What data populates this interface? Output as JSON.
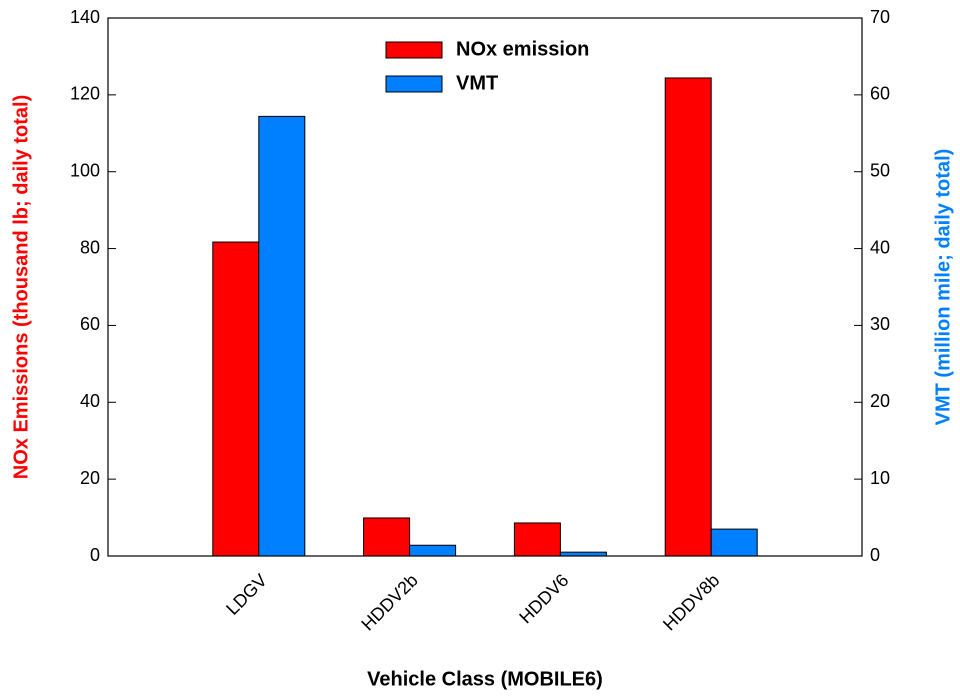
{
  "chart_data": {
    "type": "bar",
    "xlabel": "Vehicle Class (MOBILE6)",
    "ylabel": "NOx Emissions (thousand lb; daily total)",
    "y2label": "VMT (million mile; daily total)",
    "categories": [
      "LDGV",
      "HDDV2b",
      "HDDV6",
      "HDDV8b"
    ],
    "series": [
      {
        "name": "NOx emission",
        "color": "#ff0000",
        "values": [
          81.7,
          9.9,
          8.6,
          124.4
        ]
      },
      {
        "name": "VMT",
        "color": "#0080ff",
        "axis": "y2",
        "values": [
          57.2,
          1.4,
          0.5,
          3.5
        ]
      }
    ],
    "ylim": [
      0,
      140
    ],
    "yticks": [
      0,
      20,
      40,
      60,
      80,
      100,
      120,
      140
    ],
    "y2lim": [
      0,
      70
    ],
    "y2ticks": [
      0,
      10,
      20,
      30,
      40,
      50,
      60,
      70
    ],
    "ylabel_color": "#ff0000",
    "y2label_color": "#0080ff",
    "legend": "top",
    "grid": false
  }
}
